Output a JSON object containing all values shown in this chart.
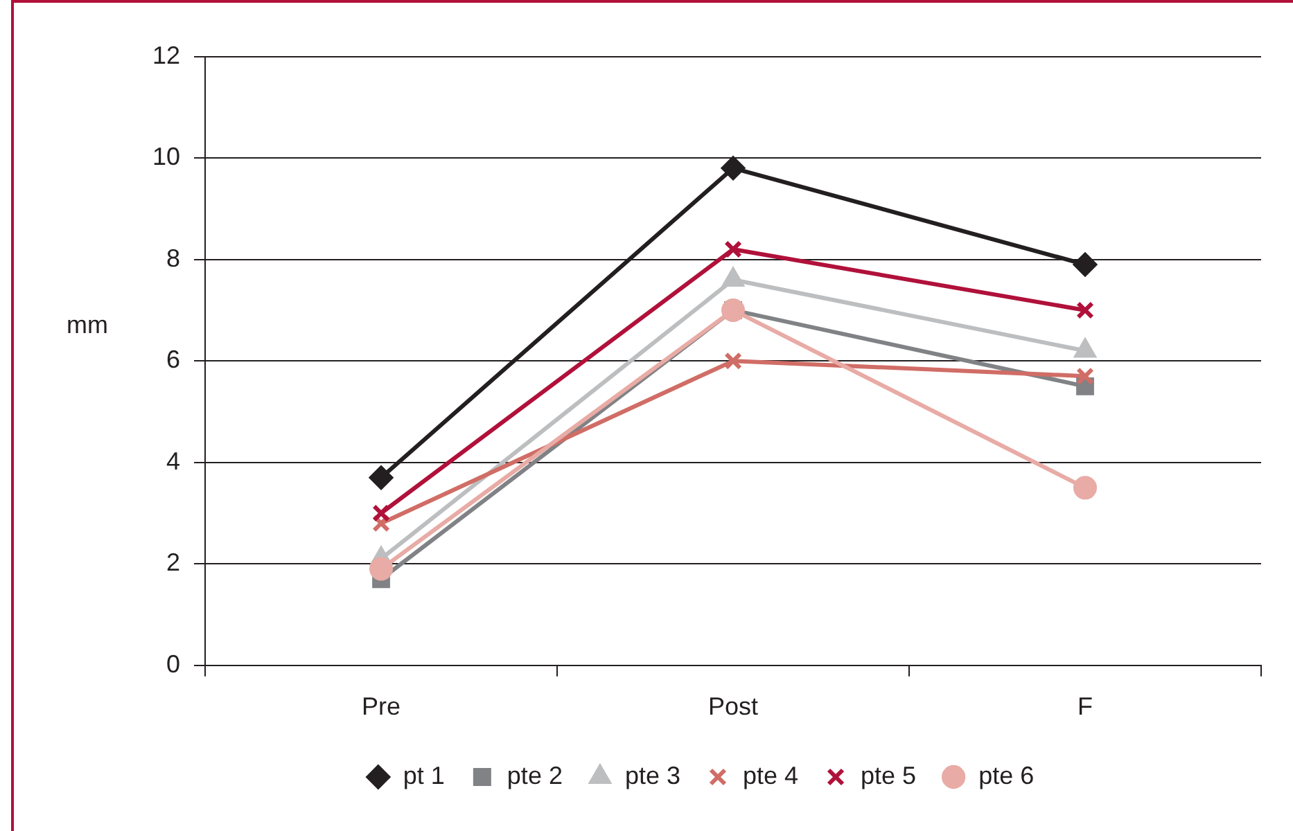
{
  "chart_data": {
    "type": "line",
    "ylabel": "mm",
    "categories": [
      "Pre",
      "Post",
      "F"
    ],
    "series": [
      {
        "name": "pt 1",
        "color": "#231f20",
        "marker": "diamond",
        "values": [
          3.7,
          9.8,
          7.9
        ]
      },
      {
        "name": "pte 2",
        "color": "#808285",
        "marker": "square",
        "values": [
          1.7,
          7.0,
          5.5
        ]
      },
      {
        "name": "pte 3",
        "color": "#bcbec0",
        "marker": "triangle",
        "values": [
          2.1,
          7.6,
          6.2
        ]
      },
      {
        "name": "pte 4",
        "color": "#d06d66",
        "marker": "cross",
        "values": [
          2.8,
          6.0,
          5.7
        ]
      },
      {
        "name": "pte 5",
        "color": "#b0113a",
        "marker": "cross",
        "values": [
          3.0,
          8.2,
          7.0
        ]
      },
      {
        "name": "pte 6",
        "color": "#e8aba5",
        "marker": "circle",
        "values": [
          1.9,
          7.0,
          3.5
        ]
      }
    ],
    "ylim": [
      0,
      12
    ],
    "yticks": [
      0,
      2,
      4,
      6,
      8,
      10,
      12
    ],
    "grid": "y",
    "legend": "bottom"
  }
}
